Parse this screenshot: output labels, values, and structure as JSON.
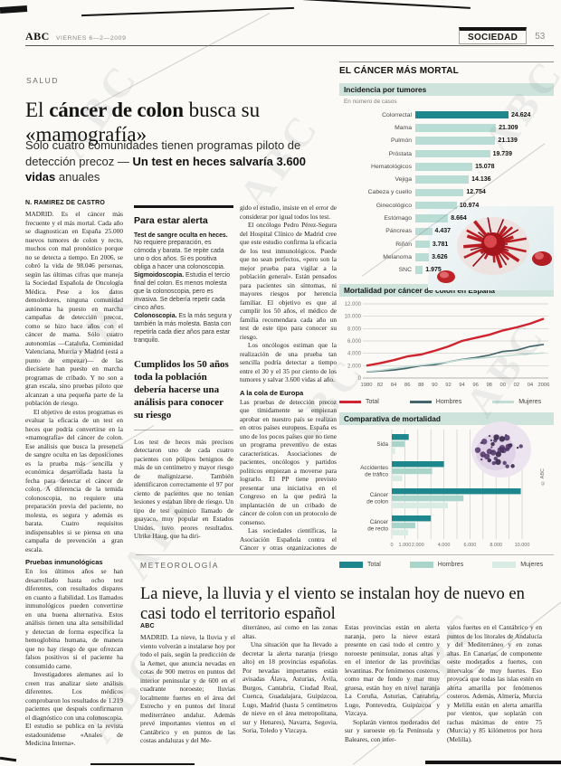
{
  "header": {
    "brand": "ABC",
    "date": "VIERNES 6—2—2009",
    "section": "SOCIEDAD",
    "page_number": "53"
  },
  "scan": {
    "watermark": "ABC"
  },
  "article": {
    "kicker": "SALUD",
    "headline": {
      "pre": "El ",
      "bold": "cáncer de colon",
      "post": " busca su «mamografía»"
    },
    "subhead": {
      "pre": "Sólo cuatro comunidades tienen programas piloto de detección precoz — ",
      "bold": "Un test en heces salvaría 3.600 vidas",
      "post": " anuales"
    },
    "columns": {
      "col1": [
        {
          "t": "byline",
          "text": "N. RAMÍREZ DE CASTRO"
        },
        {
          "t": "p",
          "text": "MADRID. Es el cáncer más frecuente y el más mortal. Cada año se diagnostican en España 25.000 nuevos tumores de colon y recto, muchos con mal pronóstico porque no se detecta a tiempo. En 2006, se cobró la vida de 98.046 personas, según las últimas cifras que maneja la Sociedad Española de Oncología Médica. Pese a los datos demoledores, ninguna comunidad autónoma ha puesto en marcha campañas de detección precoz, como se hizo hace años con el cáncer de mama. Sólo cuatro autonomías —Cataluña, Comunidad Valenciana, Murcia y Madrid (está a punto de empezar)— de las diecisiete han puesto en marcha programas de cribado. Y no son a gran escala, sino pruebas piloto que alcanzan a una pequeña parte de la población de riesgo."
        },
        {
          "t": "p",
          "text": "El objetivo de estos programas es evaluar la eficacia de un test en heces que podría convertirse en la «mamografía» del cáncer de colon. Ese análisis que busca la presencia de sangre oculta en las deposiciones es la prueba más sencilla y económica desarrollada hasta la fecha para detectar el cáncer de colon. A diferencia de la temida colonoscopia, no requiere una preparación previa del paciente, no molesta, es segura y además es barata. Cuatro requisitos indispensables si se piensa en una campaña de prevención a gran escala."
        },
        {
          "t": "h",
          "text": "Pruebas inmunológicas"
        },
        {
          "t": "p",
          "text": "En los últimos años se han desarrollado hasta ocho test diferentes, con resultados dispares en cuanto a fiabilidad. Los llamados inmunológicos pueden convertirse en una buena alternativa. Estos análisis tienen una alta sensibilidad y detectan de forma específica la hemoglobina humana, de manera que no hay riesgo de que ofrezcan falsos positivos si el paciente ha consumido carne."
        },
        {
          "t": "p",
          "text": "Investigadores alemanes así lo creen tras analizar siete análisis diferentes. Los médicos comprobaron los resultados de 1.219 pacientes que después confirmaron el diagnóstico con una colonoscopia. El estudio se publica en la revista estadounidense «Anales de Medicina Interna»."
        }
      ],
      "col2": [
        {
          "t": "rule"
        },
        {
          "t": "boxtitle",
          "text": "Para estar alerta"
        },
        {
          "t": "alert",
          "lead": "Test de sangre oculta en heces.",
          "text": "No requiere preparación, es cómoda y barata. Se repite cada uno o dos años. Si es positiva obliga a hacer una colonoscopia."
        },
        {
          "t": "alert",
          "lead": "Sigmoidoscopia.",
          "text": "Estudia el tercio final del colon. Es menos molesta que la colonoscopia, pero es invasiva. Se debería repetir cada cinco años."
        },
        {
          "t": "alert",
          "lead": "Colonoscopia.",
          "text": "Es la más segura y también la más molesta. Basta con repetirla cada diez años para estar tranquilo."
        },
        {
          "t": "quote",
          "text": "Cumplidos los 50 años toda la población debería hacerse una análisis para conocer su riesgo"
        },
        {
          "t": "grayrule"
        },
        {
          "t": "p",
          "text": "Los test de heces más precisos detectaron uno de cada cuatro pacientes con pólipos benignos de más de un centímetro y mayor riesgo de malignizarse. También identificaron correctamente el 97 por ciento de pacientes que no tenían lesiones y estaban libre de riesgo. Un tipo de test químico llamado de guayaco, muy popular en Estados Unidos, tuvo peores resultados. Ulrike Haug, que ha diri-"
        }
      ],
      "col3": [
        {
          "t": "p",
          "text": "gido el estudio, insiste en el error de considerar por igual todos los test."
        },
        {
          "t": "p",
          "text": "El oncólogo Pedro Pérez-Segura del Hospital Clínico de Madrid cree que este estudio confirma la eficacia de los test inmunológicos. Puede que no sean perfectos, «pero son la mejor prueba para vigilar a la población general». Están pensados para pacientes sin síntomas, ni mayores riesgos por herencia familiar. El objetivo es que al cumplir los 50 años, el médico de familia recomendara cada año un test de este tipo para conocer su riesgo."
        },
        {
          "t": "p",
          "text": "Los oncólogos estiman que la realización de una prueba tan sencilla podría detectar a tiempo entre el 30 y el 35 por ciento de los tumores y salvar 3.600 vidas al año."
        },
        {
          "t": "h",
          "text": "A la cola de Europa"
        },
        {
          "t": "p",
          "text": "Las pruebas de detección precoz que tímidamente se empiezan aprobar en nuestro país se realizan en otros países europeos. España es uno de los pocos países que no tiene un programa preventivo de estas características. Asociaciones de pacientes, oncólogos y partidos políticos empiezan a moverse para lograrlo. El PP tiene previsto presentar una iniciativa en el Congreso en la que pedirá la implantación de un cribado de cáncer de colon con un protocolo de consenso."
        },
        {
          "t": "p",
          "text": "Las sociedades científicas, la Asociación Española contra el Cáncer y otras organizaciones de pacientes se han unido en una alianza para fomentar la prevención. La discusión no está en las autoridades sanitarias, pero sí en los expertos."
        }
      ]
    }
  },
  "infographic": {
    "title": "EL CÁNCER MÁS MORTAL",
    "credit": "© ABC"
  },
  "chart_data": [
    {
      "type": "bar",
      "orientation": "horizontal",
      "title": "Incidencia por tumores",
      "subtitle": "En número de casos",
      "categories": [
        "Colorrectal",
        "Mama",
        "Pulmón",
        "Próstata",
        "Hematológicos",
        "Vejiga",
        "Cabeza y cuello",
        "Ginecológico",
        "Estómago",
        "Páncreas",
        "Riñón",
        "Melanoma",
        "SNC"
      ],
      "values": [
        24624,
        21309,
        21139,
        19739,
        15078,
        14136,
        12754,
        10974,
        8664,
        4437,
        3781,
        3626,
        1975
      ],
      "value_labels": [
        "24.624",
        "21.309",
        "21.139",
        "19.739",
        "15.078",
        "14.136",
        "12.754",
        "10.974",
        "8.664",
        "4.437",
        "3.781",
        "3.626",
        "1.975"
      ],
      "highlight_index": 0,
      "bar_color": "#b9dcd4",
      "highlight_color": "#1d878d"
    },
    {
      "type": "line",
      "title": "Mortalidad por cáncer de colon en España",
      "x_ticklabels": [
        "1980",
        "82",
        "84",
        "86",
        "88",
        "90",
        "92",
        "94",
        "96",
        "98",
        "00",
        "02",
        "04",
        "2006"
      ],
      "ylim": [
        0,
        12000
      ],
      "yticks": [
        0,
        2000,
        4000,
        6000,
        8000,
        10000,
        12000
      ],
      "ytick_labels": [
        "0",
        "2.000",
        "4.000",
        "6.000",
        "8.000",
        "10.000",
        "12.000"
      ],
      "grid": true,
      "legend_position": "bottom",
      "series": [
        {
          "name": "Total",
          "color": "#cf2330",
          "width": 2.4,
          "values": [
            2000,
            2400,
            2900,
            3500,
            3800,
            4400,
            5100,
            6000,
            6500,
            7000,
            7700,
            8200,
            8800,
            9600
          ]
        },
        {
          "name": "Hombres",
          "color": "#44666a",
          "width": 1.7,
          "values": [
            1000,
            1150,
            1300,
            1600,
            2000,
            2150,
            2600,
            3000,
            3300,
            3700,
            4300,
            4500,
            5100,
            5450
          ]
        },
        {
          "name": "Mujeres",
          "color": "#c3dcd5",
          "width": 1.5,
          "values": [
            1050,
            1250,
            1550,
            1850,
            2100,
            2350,
            2600,
            2950,
            3150,
            3350,
            3550,
            3750,
            3900,
            4050
          ]
        }
      ]
    },
    {
      "type": "bar",
      "orientation": "horizontal-grouped",
      "title": "Comparativa de mortalidad",
      "categories": [
        "Sida",
        "Accidentes de tráfico",
        "Cáncer de colon",
        "Cáncer de recto"
      ],
      "xlim": [
        0,
        10000
      ],
      "xticks": [
        0,
        1000,
        2000,
        4000,
        6000,
        8000,
        10000
      ],
      "xtick_labels": [
        "0",
        "1.000",
        "2.000",
        "4.000",
        "6.000",
        "8.000",
        "10.000"
      ],
      "grid": true,
      "legend_position": "bottom",
      "series": [
        {
          "name": "Total",
          "color": "#1d878d",
          "values": [
            1300,
            4000,
            9900,
            3000
          ]
        },
        {
          "name": "Hombres",
          "color": "#a9d4ca",
          "values": [
            1000,
            3100,
            5500,
            1800
          ]
        },
        {
          "name": "Mujeres",
          "color": "#d9ebe5",
          "values": [
            250,
            800,
            4300,
            1250
          ]
        }
      ]
    }
  ],
  "weather": {
    "kicker": "METEOROLOGÍA",
    "headline": "La nieve, la lluvia y el viento se instalan hoy de nuevo en casi todo el territorio español",
    "cols": [
      [
        {
          "t": "byline",
          "text": "ABC"
        },
        {
          "t": "p",
          "text": "MADRID. La nieve, la lluvia y el viento volverán a instalarse hoy por todo el país, según la predicción de la Aemet, que anuncia nevadas en cotas de 900 metros en puntos del interior peninsular y de 600 en el cuadrante noroeste; lluvias localmente fuertes en el área del Estrecho y en puntos del litoral mediterráneo andaluz. Además prevé importantes vientos en el Cantábrico y en puntos de las costas andaluzas y del Me-"
        }
      ],
      [
        {
          "t": "p",
          "text": "diterráneo, así como en las zonas altas."
        },
        {
          "t": "p",
          "text": "Una situación que ha llevado a decretar la alerta naranja (riesgo alto) en 18 provincias españolas. Por nevadas importantes están avisadas Álava, Asturias, Ávila, Burgos, Cantabria, Ciudad Real, Cuenca, Guadalajara, Guipúzcoa, Lugo, Madrid (hasta 5 centímetros de nieve en el área metropolitana, sur y Henares), Navarra, Segovia, Soria, Toledo y Vizcaya."
        }
      ],
      [
        {
          "t": "p",
          "text": "Estas provincias están en alerta naranja, pero la nieve estará presente en casi todo el centro y noroeste peninsular, zonas altas y en el interior de las provincias levantinas. Por fenómenos costeros, como mar de fondo y mar muy gruesa, están hoy en nivel naranja La Coruña, Asturias, Cantabria, Lugo, Pontevedra, Guipúzcoa y Vizcaya."
        },
        {
          "t": "p",
          "text": "Soplarán vientos moderados del sur y suroeste en la Península y Baleares, con inter-"
        }
      ],
      [
        {
          "t": "p",
          "text": "valos fuertes en el Cantábrico y en puntos de los litorales de Andalucía y del Mediterráneo y en zonas altas. En Canarias, de componente oeste moderados a fuertes, con intervalos de muy fuertes. Eso provoca que todas las islas estén en alerta amarilla por fenómenos costeros. Además, Almería, Murcia y Melilla están en alerta amarilla por vientos, que soplarán con rachas máximas de entre 75 (Murcia) y 85 kilómetros por hora (Melilla)."
        }
      ]
    ]
  }
}
